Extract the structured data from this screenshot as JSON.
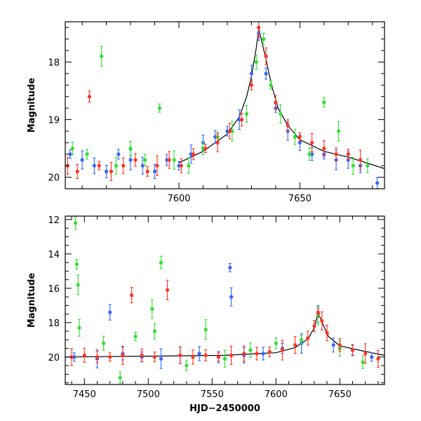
{
  "chart_data": [
    {
      "type": "scatter",
      "panel": "top",
      "title": "",
      "xlabel": "",
      "ylabel": "Magnitude",
      "xlim": [
        7553,
        7685
      ],
      "ylim": [
        20.2,
        17.3
      ],
      "y_inverted": true,
      "x_ticks": [
        7600,
        7650
      ],
      "y_ticks": [
        18,
        19,
        20
      ],
      "series": [
        {
          "color": "#3366ff",
          "x": [
            7555,
            7560,
            7565,
            7570,
            7575,
            7580,
            7585,
            7590,
            7595,
            7600,
            7605,
            7610,
            7615,
            7620,
            7625,
            7630,
            7633,
            7636,
            7640,
            7645,
            7650,
            7655,
            7660,
            7665,
            7670,
            7675,
            7682
          ],
          "y": [
            19.6,
            19.7,
            19.8,
            19.9,
            19.6,
            19.7,
            19.8,
            19.9,
            19.7,
            19.8,
            19.6,
            19.4,
            19.3,
            19.2,
            19.0,
            18.2,
            17.5,
            18.2,
            18.8,
            19.2,
            19.4,
            19.6,
            19.6,
            19.7,
            19.7,
            19.8,
            20.1
          ]
        },
        {
          "color": "#33dd33",
          "x": [
            7556,
            7562,
            7568,
            7574,
            7580,
            7586,
            7592,
            7598,
            7604,
            7610,
            7616,
            7622,
            7628,
            7632,
            7635,
            7638,
            7642,
            7648,
            7654,
            7660,
            7666,
            7672,
            7678
          ],
          "y": [
            19.5,
            19.6,
            17.9,
            19.8,
            19.5,
            19.7,
            18.8,
            19.7,
            19.8,
            19.5,
            19.3,
            19.2,
            18.9,
            18.0,
            17.6,
            18.4,
            18.9,
            19.3,
            19.6,
            18.7,
            19.2,
            19.8,
            19.8
          ]
        },
        {
          "color": "#ff3322",
          "x": [
            7554,
            7558,
            7563,
            7567,
            7572,
            7577,
            7582,
            7587,
            7591,
            7596,
            7601,
            7606,
            7611,
            7616,
            7621,
            7626,
            7630,
            7633,
            7636,
            7640,
            7645,
            7650,
            7655,
            7660,
            7665,
            7670,
            7675
          ],
          "y": [
            19.8,
            19.9,
            18.6,
            19.8,
            19.9,
            19.8,
            19.7,
            19.9,
            19.8,
            19.7,
            19.8,
            19.6,
            19.5,
            19.4,
            19.2,
            19.0,
            18.4,
            17.4,
            17.9,
            18.7,
            19.1,
            19.3,
            19.4,
            19.5,
            19.6,
            19.6,
            19.7
          ]
        }
      ],
      "model_curve": {
        "x": [
          7600,
          7610,
          7620,
          7625,
          7628,
          7630,
          7632,
          7633,
          7634,
          7636,
          7638,
          7641,
          7645,
          7650,
          7660,
          7670,
          7685
        ],
        "y": [
          19.75,
          19.55,
          19.25,
          18.95,
          18.6,
          18.25,
          17.75,
          17.42,
          17.6,
          17.95,
          18.35,
          18.8,
          19.1,
          19.35,
          19.55,
          19.65,
          19.85
        ]
      }
    },
    {
      "type": "scatter",
      "panel": "bottom",
      "title": "",
      "xlabel": "HJD−2450000",
      "ylabel": "Magnitude",
      "xlim": [
        7435,
        7685
      ],
      "ylim": [
        21.6,
        11.8
      ],
      "y_inverted": true,
      "x_ticks": [
        7450,
        7500,
        7550,
        7600,
        7650
      ],
      "y_ticks": [
        12,
        14,
        16,
        18,
        20
      ],
      "series": [
        {
          "color": "#3366ff",
          "x": [
            7442,
            7460,
            7470,
            7480,
            7495,
            7510,
            7525,
            7540,
            7555,
            7564,
            7565,
            7575,
            7590,
            7605,
            7620,
            7633,
            7645,
            7660,
            7675
          ],
          "y": [
            20.0,
            20.1,
            17.4,
            19.8,
            20.0,
            20.1,
            19.9,
            19.8,
            20.0,
            14.8,
            16.5,
            19.9,
            19.8,
            19.5,
            19.2,
            17.5,
            19.3,
            19.6,
            20.0
          ]
        },
        {
          "color": "#33dd33",
          "x": [
            7443,
            7444,
            7445,
            7446,
            7465,
            7478,
            7490,
            7503,
            7505,
            7510,
            7530,
            7545,
            7560,
            7580,
            7600,
            7620,
            7633,
            7650,
            7668
          ],
          "y": [
            12.2,
            14.6,
            15.8,
            18.3,
            19.2,
            21.2,
            18.8,
            17.2,
            18.5,
            14.5,
            20.5,
            18.4,
            20.1,
            19.6,
            19.2,
            19.0,
            17.6,
            19.5,
            20.3
          ]
        },
        {
          "color": "#ff3322",
          "x": [
            7440,
            7450,
            7460,
            7470,
            7480,
            7487,
            7495,
            7505,
            7515,
            7525,
            7535,
            7545,
            7555,
            7565,
            7575,
            7585,
            7595,
            7605,
            7615,
            7625,
            7630,
            7633,
            7636,
            7640,
            7650,
            7660,
            7670,
            7680
          ],
          "y": [
            20.0,
            19.9,
            20.0,
            20.0,
            19.9,
            16.4,
            19.9,
            20.0,
            16.1,
            19.9,
            20.0,
            19.9,
            20.0,
            19.9,
            19.8,
            19.8,
            19.7,
            19.6,
            19.3,
            18.9,
            18.2,
            17.4,
            17.9,
            18.6,
            19.3,
            19.6,
            19.8,
            20.1
          ]
        }
      ],
      "model_curve": {
        "x": [
          7435,
          7500,
          7560,
          7600,
          7615,
          7625,
          7630,
          7633,
          7636,
          7641,
          7650,
          7665,
          7685
        ],
        "y": [
          20.0,
          19.95,
          19.9,
          19.75,
          19.45,
          18.95,
          18.3,
          17.42,
          17.95,
          18.8,
          19.35,
          19.6,
          19.9
        ]
      }
    }
  ]
}
